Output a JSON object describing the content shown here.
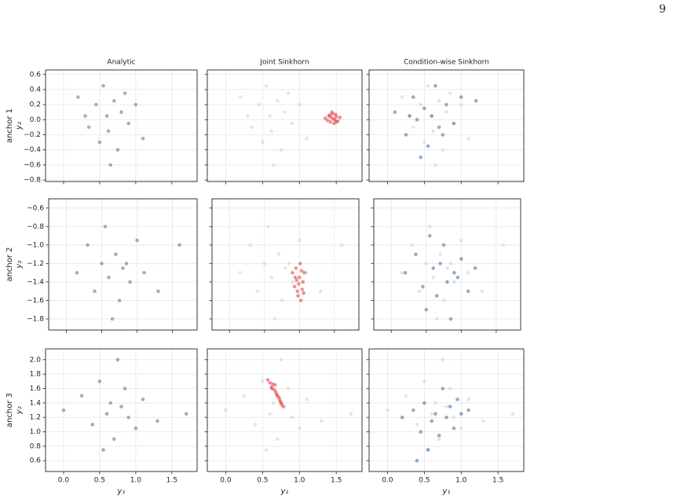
{
  "page_number": "9",
  "chart_data": [
    {
      "type": "scatter",
      "title": "Analytic",
      "row_label": "anchor 1",
      "ylabel": "y₂",
      "grid": true,
      "xlim": [
        -0.25,
        1.85
      ],
      "ylim": [
        -0.82,
        0.66
      ],
      "xticks": [
        0,
        0.5,
        1,
        1.5
      ],
      "yticks": [
        {
          "value": -0.8,
          "label": "−0.8"
        },
        {
          "value": -0.6,
          "label": "−0.6"
        },
        {
          "value": -0.4,
          "label": "−0.4"
        },
        {
          "value": -0.2,
          "label": "−0.2"
        },
        {
          "value": 0,
          "label": "0.0"
        },
        0.2,
        0.4,
        0.6
      ],
      "series": [
        {
          "color": "#777777",
          "x": [
            0.2,
            0.35,
            0.45,
            0.5,
            0.55,
            0.6,
            0.62,
            0.7,
            0.75,
            0.8,
            0.9,
            1.0,
            1.1,
            0.3,
            0.65,
            0.85
          ],
          "y": [
            0.3,
            -0.1,
            0.2,
            -0.3,
            0.45,
            0.05,
            -0.15,
            0.25,
            -0.4,
            0.1,
            -0.05,
            0.2,
            -0.25,
            0.05,
            -0.6,
            0.35
          ]
        }
      ]
    },
    {
      "type": "scatter",
      "title": "Joint Sinkhorn",
      "grid": true,
      "xlim": [
        -0.25,
        1.85
      ],
      "ylim": [
        -0.82,
        0.66
      ],
      "xticks": [
        0,
        0.5,
        1,
        1.5
      ],
      "yticks": [
        -0.8,
        -0.6,
        -0.4,
        -0.2,
        0,
        0.2,
        0.4,
        0.6
      ],
      "series": [
        {
          "color": "#d4d4d4",
          "x": [
            0.2,
            0.35,
            0.45,
            0.5,
            0.55,
            0.6,
            0.62,
            0.7,
            0.75,
            0.8,
            0.9,
            1.0,
            1.1,
            0.3,
            0.65,
            0.85
          ],
          "y": [
            0.3,
            -0.1,
            0.2,
            -0.3,
            0.45,
            0.05,
            -0.15,
            0.25,
            -0.4,
            0.1,
            -0.05,
            0.2,
            -0.25,
            0.05,
            -0.6,
            0.35
          ]
        },
        {
          "color": "#e2474c",
          "x": [
            1.35,
            1.4,
            1.42,
            1.45,
            1.48,
            1.5,
            1.52,
            1.38,
            1.44,
            1.47,
            1.55,
            1.41,
            1.46,
            1.5,
            1.43,
            1.49
          ],
          "y": [
            0.02,
            0.05,
            -0.03,
            0.08,
            0.0,
            0.04,
            -0.02,
            -0.01,
            0.1,
            -0.05,
            0.03,
            0.06,
            0.01,
            -0.03,
            0.03,
            0.07
          ]
        }
      ]
    },
    {
      "type": "scatter",
      "title": "Condition-wise Sinkhorn",
      "grid": true,
      "xlim": [
        -0.25,
        1.85
      ],
      "ylim": [
        -0.82,
        0.66
      ],
      "xticks": [
        0,
        0.5,
        1,
        1.5
      ],
      "yticks": [
        -0.8,
        -0.6,
        -0.4,
        -0.2,
        0,
        0.2,
        0.4,
        0.6
      ],
      "series": [
        {
          "color": "#d4d4d4",
          "x": [
            0.2,
            0.35,
            0.45,
            0.5,
            0.55,
            0.6,
            0.62,
            0.7,
            0.75,
            0.8,
            0.9,
            1.0,
            1.1,
            0.3,
            0.65,
            0.85
          ],
          "y": [
            0.3,
            -0.1,
            0.2,
            -0.3,
            0.45,
            0.05,
            -0.15,
            0.25,
            -0.4,
            0.1,
            -0.05,
            0.2,
            -0.25,
            0.05,
            -0.6,
            0.35
          ]
        },
        {
          "color": "#4a76a8",
          "x": [
            0.1,
            0.25,
            0.35,
            0.4,
            0.5,
            0.55,
            0.6,
            0.65,
            0.7,
            0.8,
            0.9,
            1.0,
            1.2,
            0.45,
            0.3,
            0.75
          ],
          "y": [
            0.1,
            -0.2,
            0.3,
            0.0,
            0.15,
            -0.35,
            0.05,
            0.45,
            -0.1,
            0.2,
            -0.05,
            0.3,
            0.25,
            -0.5,
            0.05,
            -0.2
          ]
        }
      ]
    },
    {
      "type": "scatter",
      "row_label": "anchor 2",
      "ylabel": "y₂",
      "grid": true,
      "xlim": [
        -0.25,
        1.85
      ],
      "ylim": [
        -1.92,
        -0.5
      ],
      "xticks": [
        0,
        0.5,
        1,
        1.5
      ],
      "yticks": [
        {
          "value": -1.8,
          "label": "−1.8"
        },
        {
          "value": -1.6,
          "label": "−1.6"
        },
        {
          "value": -1.4,
          "label": "−1.4"
        },
        {
          "value": -1.2,
          "label": "−1.2"
        },
        {
          "value": -1,
          "label": "−1.0"
        },
        {
          "value": -0.8,
          "label": "−0.8"
        },
        {
          "value": -0.6,
          "label": "−0.6"
        }
      ],
      "series": [
        {
          "color": "#777777",
          "x": [
            0.15,
            0.3,
            0.4,
            0.5,
            0.55,
            0.6,
            0.7,
            0.75,
            0.8,
            0.9,
            1.0,
            1.1,
            1.3,
            1.6,
            0.65,
            0.85
          ],
          "y": [
            -1.3,
            -1.0,
            -1.5,
            -1.2,
            -0.8,
            -1.35,
            -1.1,
            -1.6,
            -1.25,
            -1.4,
            -0.95,
            -1.3,
            -1.5,
            -1.0,
            -1.8,
            -1.2
          ]
        }
      ]
    },
    {
      "type": "scatter",
      "grid": true,
      "xlim": [
        -0.25,
        1.85
      ],
      "ylim": [
        -1.92,
        -0.5
      ],
      "xticks": [
        0,
        0.5,
        1,
        1.5
      ],
      "yticks": [
        -1.8,
        -1.6,
        -1.4,
        -1.2,
        -1,
        -0.8,
        -0.6
      ],
      "series": [
        {
          "color": "#d4d4d4",
          "x": [
            0.15,
            0.3,
            0.4,
            0.5,
            0.55,
            0.6,
            0.7,
            0.75,
            0.8,
            0.9,
            1.0,
            1.1,
            1.3,
            1.6,
            0.65,
            0.85
          ],
          "y": [
            -1.3,
            -1.0,
            -1.5,
            -1.2,
            -0.8,
            -1.35,
            -1.1,
            -1.6,
            -1.25,
            -1.4,
            -0.95,
            -1.3,
            -1.5,
            -1.0,
            -1.8,
            -1.2
          ]
        },
        {
          "color": "#e2474c",
          "x": [
            0.9,
            0.93,
            0.95,
            0.97,
            1.0,
            1.02,
            1.05,
            1.07,
            0.98,
            1.01,
            0.96,
            1.04,
            0.99,
            1.03,
            0.94,
            1.06
          ],
          "y": [
            -1.3,
            -1.45,
            -1.25,
            -1.5,
            -1.35,
            -1.6,
            -1.4,
            -1.3,
            -1.55,
            -1.2,
            -1.38,
            -1.48,
            -1.42,
            -1.28,
            -1.35,
            -1.52
          ]
        }
      ]
    },
    {
      "type": "scatter",
      "grid": true,
      "xlim": [
        -0.25,
        1.85
      ],
      "ylim": [
        -1.92,
        -0.5
      ],
      "xticks": [
        0,
        0.5,
        1,
        1.5
      ],
      "yticks": [
        -1.8,
        -1.6,
        -1.4,
        -1.2,
        -1,
        -0.8,
        -0.6
      ],
      "series": [
        {
          "color": "#d4d4d4",
          "x": [
            0.15,
            0.3,
            0.4,
            0.5,
            0.55,
            0.6,
            0.7,
            0.75,
            0.8,
            0.9,
            1.0,
            1.1,
            1.3,
            1.6,
            0.65,
            0.85
          ],
          "y": [
            -1.3,
            -1.0,
            -1.5,
            -1.2,
            -0.8,
            -1.35,
            -1.1,
            -1.6,
            -1.25,
            -1.4,
            -0.95,
            -1.3,
            -1.5,
            -1.0,
            -1.8,
            -1.2
          ]
        },
        {
          "color": "#4a76a8",
          "x": [
            0.2,
            0.35,
            0.45,
            0.55,
            0.6,
            0.65,
            0.7,
            0.75,
            0.8,
            0.9,
            1.0,
            1.1,
            1.2,
            0.5,
            0.85,
            0.95
          ],
          "y": [
            -1.3,
            -1.1,
            -1.45,
            -0.9,
            -1.25,
            -1.55,
            -1.2,
            -1.0,
            -1.4,
            -1.3,
            -1.15,
            -1.5,
            -1.25,
            -1.7,
            -1.8,
            -1.35
          ]
        }
      ]
    },
    {
      "type": "scatter",
      "row_label": "anchor 3",
      "ylabel": "y₂",
      "xlabel": "y₁",
      "grid": true,
      "xlim": [
        -0.25,
        1.85
      ],
      "ylim": [
        0.45,
        2.15
      ],
      "xticks": [
        {
          "value": 0,
          "label": "0.0"
        },
        0.5,
        {
          "value": 1,
          "label": "1.0"
        },
        1.5
      ],
      "yticks": [
        0.6,
        0.8,
        {
          "value": 1,
          "label": "1.0"
        },
        1.2,
        1.4,
        1.6,
        1.8,
        {
          "value": 2,
          "label": "2.0"
        }
      ],
      "series": [
        {
          "color": "#777777",
          "x": [
            0.0,
            0.25,
            0.4,
            0.5,
            0.6,
            0.65,
            0.7,
            0.8,
            0.85,
            0.9,
            1.0,
            1.1,
            1.3,
            0.55,
            0.75,
            1.7
          ],
          "y": [
            1.3,
            1.5,
            1.1,
            1.7,
            1.25,
            1.4,
            0.9,
            1.35,
            1.6,
            1.2,
            1.05,
            1.45,
            1.15,
            0.75,
            2.0,
            1.25
          ]
        }
      ]
    },
    {
      "type": "scatter",
      "xlabel": "y₁",
      "grid": true,
      "xlim": [
        -0.25,
        1.85
      ],
      "ylim": [
        0.45,
        2.15
      ],
      "xticks": [
        {
          "value": 0,
          "label": "0.0"
        },
        0.5,
        {
          "value": 1,
          "label": "1.0"
        },
        1.5
      ],
      "yticks": [
        0.6,
        0.8,
        1,
        1.2,
        1.4,
        1.6,
        1.8,
        2
      ],
      "series": [
        {
          "color": "#d4d4d4",
          "x": [
            0.0,
            0.25,
            0.4,
            0.5,
            0.6,
            0.65,
            0.7,
            0.8,
            0.85,
            0.9,
            1.0,
            1.1,
            1.3,
            0.55,
            0.75,
            1.7
          ],
          "y": [
            1.3,
            1.5,
            1.1,
            1.7,
            1.25,
            1.4,
            0.9,
            1.35,
            1.6,
            1.2,
            1.05,
            1.45,
            1.15,
            0.75,
            2.0,
            1.25
          ]
        },
        {
          "color": "#e2474c",
          "x": [
            0.57,
            0.6,
            0.62,
            0.64,
            0.66,
            0.68,
            0.7,
            0.72,
            0.74,
            0.76,
            0.78,
            0.63,
            0.69,
            0.73,
            0.67,
            0.75
          ],
          "y": [
            1.72,
            1.68,
            1.62,
            1.66,
            1.58,
            1.55,
            1.5,
            1.48,
            1.42,
            1.38,
            1.35,
            1.6,
            1.52,
            1.45,
            1.65,
            1.4
          ]
        }
      ]
    },
    {
      "type": "scatter",
      "xlabel": "y₁",
      "grid": true,
      "xlim": [
        -0.25,
        1.85
      ],
      "ylim": [
        0.45,
        2.15
      ],
      "xticks": [
        {
          "value": 0,
          "label": "0.0"
        },
        0.5,
        {
          "value": 1,
          "label": "1.0"
        },
        1.5
      ],
      "yticks": [
        0.6,
        0.8,
        1,
        1.2,
        1.4,
        1.6,
        1.8,
        2
      ],
      "series": [
        {
          "color": "#d4d4d4",
          "x": [
            0.0,
            0.25,
            0.4,
            0.5,
            0.6,
            0.65,
            0.7,
            0.8,
            0.85,
            0.9,
            1.0,
            1.1,
            1.3,
            0.55,
            0.75,
            1.7
          ],
          "y": [
            1.3,
            1.5,
            1.1,
            1.7,
            1.25,
            1.4,
            0.9,
            1.35,
            1.6,
            1.2,
            1.05,
            1.45,
            1.15,
            0.75,
            2.0,
            1.25
          ]
        },
        {
          "color": "#4a76a8",
          "x": [
            0.2,
            0.35,
            0.45,
            0.5,
            0.6,
            0.65,
            0.7,
            0.75,
            0.8,
            0.85,
            0.9,
            1.0,
            1.1,
            0.55,
            0.4,
            0.95
          ],
          "y": [
            1.2,
            1.3,
            1.0,
            1.4,
            1.15,
            1.25,
            0.95,
            1.6,
            1.2,
            1.35,
            1.05,
            1.25,
            1.3,
            0.75,
            0.6,
            1.45
          ]
        }
      ]
    }
  ]
}
